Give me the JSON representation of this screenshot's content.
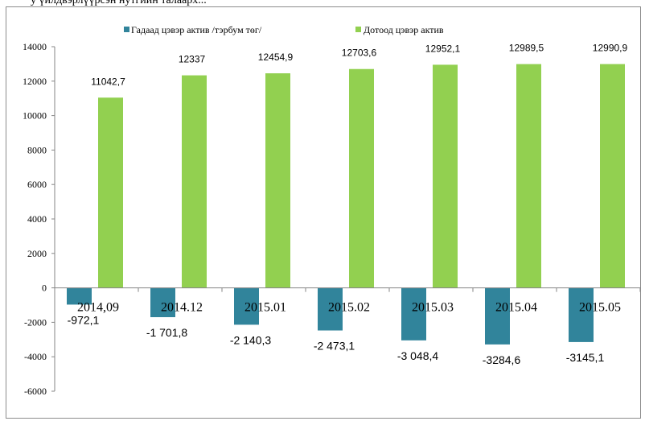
{
  "caption": "у үйлдвэрлүүрсэн нутгийн талаарх...",
  "colors": {
    "external": "#31849b",
    "domestic": "#92d050",
    "axis": "#868686"
  },
  "chart_data": {
    "type": "bar",
    "title": "",
    "xlabel": "",
    "ylabel": "",
    "categories": [
      "2014,09",
      "2014.12",
      "2015.01",
      "2015.02",
      "2015.03",
      "2015.04",
      "2015.05"
    ],
    "series": [
      {
        "name": "Гадаад цэвэр актив /тэрбум төг/",
        "values": [
          -972.1,
          -1701.8,
          -2140.3,
          -2473.1,
          -3048.4,
          -3284.6,
          -3145.1
        ],
        "labels": [
          "-972,1",
          "-1 701,8",
          "-2 140,3",
          "-2 473,1",
          "-3 048,4",
          "-3284,6",
          "-3145,1"
        ]
      },
      {
        "name": "Дотоод цэвэр актив",
        "values": [
          11042.7,
          12337,
          12454.9,
          12703.6,
          12952.1,
          12989.5,
          12990.9
        ],
        "labels": [
          "11042,7",
          "12337",
          "12454,9",
          "12703,6",
          "12952,1",
          "12989,5",
          "12990,9"
        ]
      }
    ],
    "ylim": [
      -6000,
      14000
    ],
    "yticks": [
      14000,
      12000,
      10000,
      8000,
      6000,
      4000,
      2000,
      0,
      -2000,
      -4000,
      -6000
    ],
    "grid": false,
    "legend": "top-center"
  }
}
